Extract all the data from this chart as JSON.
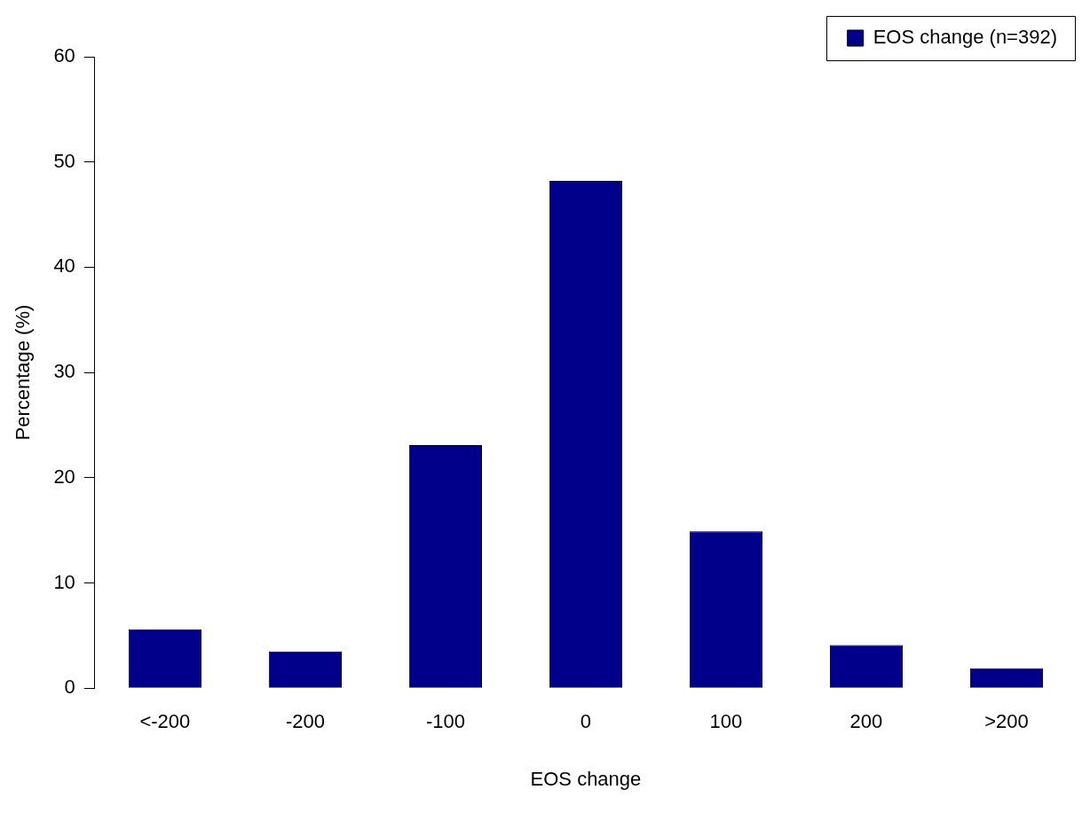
{
  "chart_data": {
    "type": "bar",
    "xlabel": "EOS change",
    "ylabel": "Percentage (%)",
    "categories": [
      "<-200",
      "-200",
      "-100",
      "0",
      "100",
      "200",
      ">200"
    ],
    "series": [
      {
        "name": "EOS change (n=392)",
        "color": "#00008b",
        "values": [
          5.6,
          3.5,
          23.1,
          48.2,
          14.9,
          4.1,
          1.9
        ]
      }
    ],
    "ylim": [
      0,
      60
    ],
    "yticks": [
      0,
      10,
      20,
      30,
      40,
      50,
      60
    ],
    "grid": false,
    "legend": "top right"
  }
}
